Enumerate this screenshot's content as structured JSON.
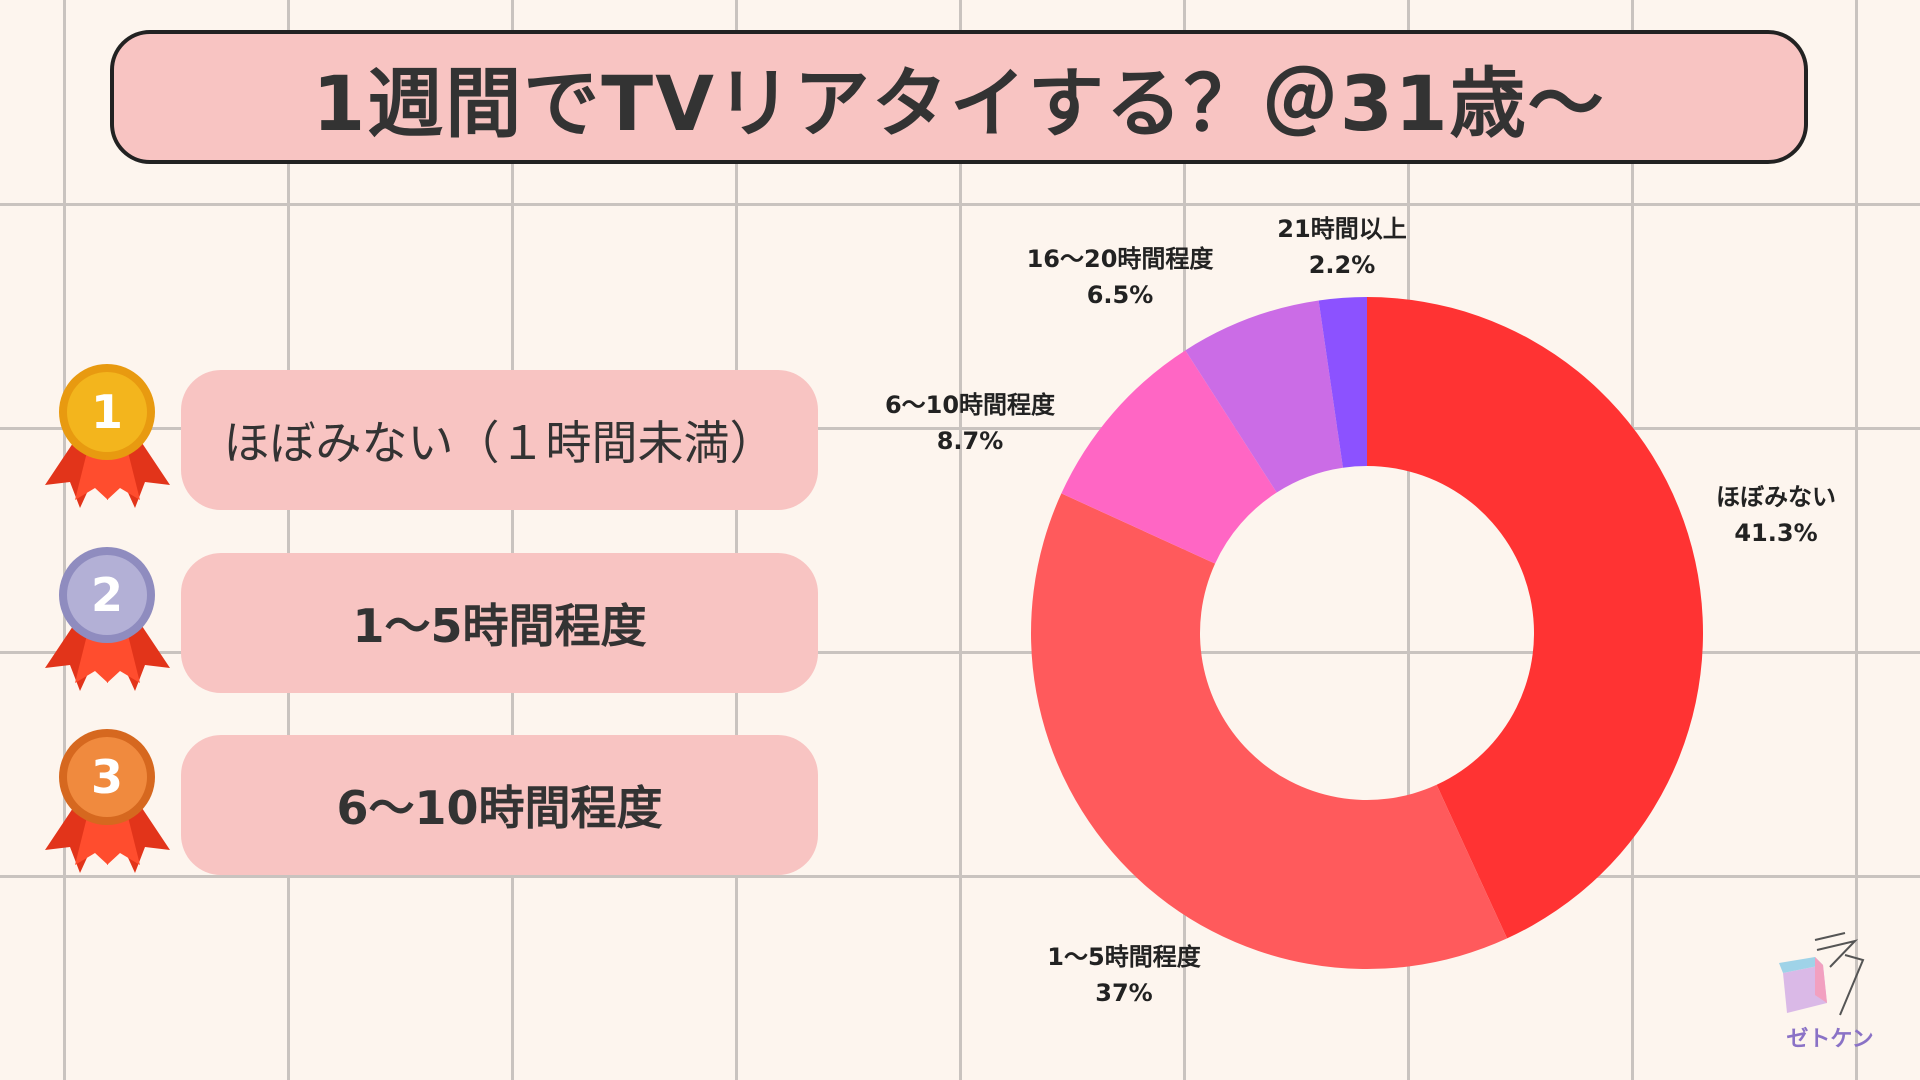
{
  "title": "1週間でTVリアタイする？＠31歳～",
  "ranking": [
    {
      "rank": "1",
      "label": "ほぼみない（１時間未満）",
      "medal_color": "#f3b51d"
    },
    {
      "rank": "2",
      "label": "1～5時間程度",
      "medal_color": "#b3b0d6"
    },
    {
      "rank": "3",
      "label": "6～10時間程度",
      "medal_color": "#f08a3e"
    }
  ],
  "chart_data": {
    "type": "pie",
    "title": "",
    "categories": [
      "ほぼみない",
      "1～5時間程度",
      "6～10時間程度",
      "16～20時間程度",
      "21時間以上"
    ],
    "values": [
      41.3,
      37,
      8.7,
      6.5,
      2.2
    ],
    "value_labels": [
      "41.3%",
      "37%",
      "8.7%",
      "6.5%",
      "2.2%"
    ],
    "colors": [
      "#ff3333",
      "#ff5a5c",
      "#ff66c4",
      "#cb6ce6",
      "#8c52ff",
      "#5e3262"
    ],
    "donut": true,
    "legend": "none"
  },
  "logo": {
    "text": "ゼトケン"
  }
}
